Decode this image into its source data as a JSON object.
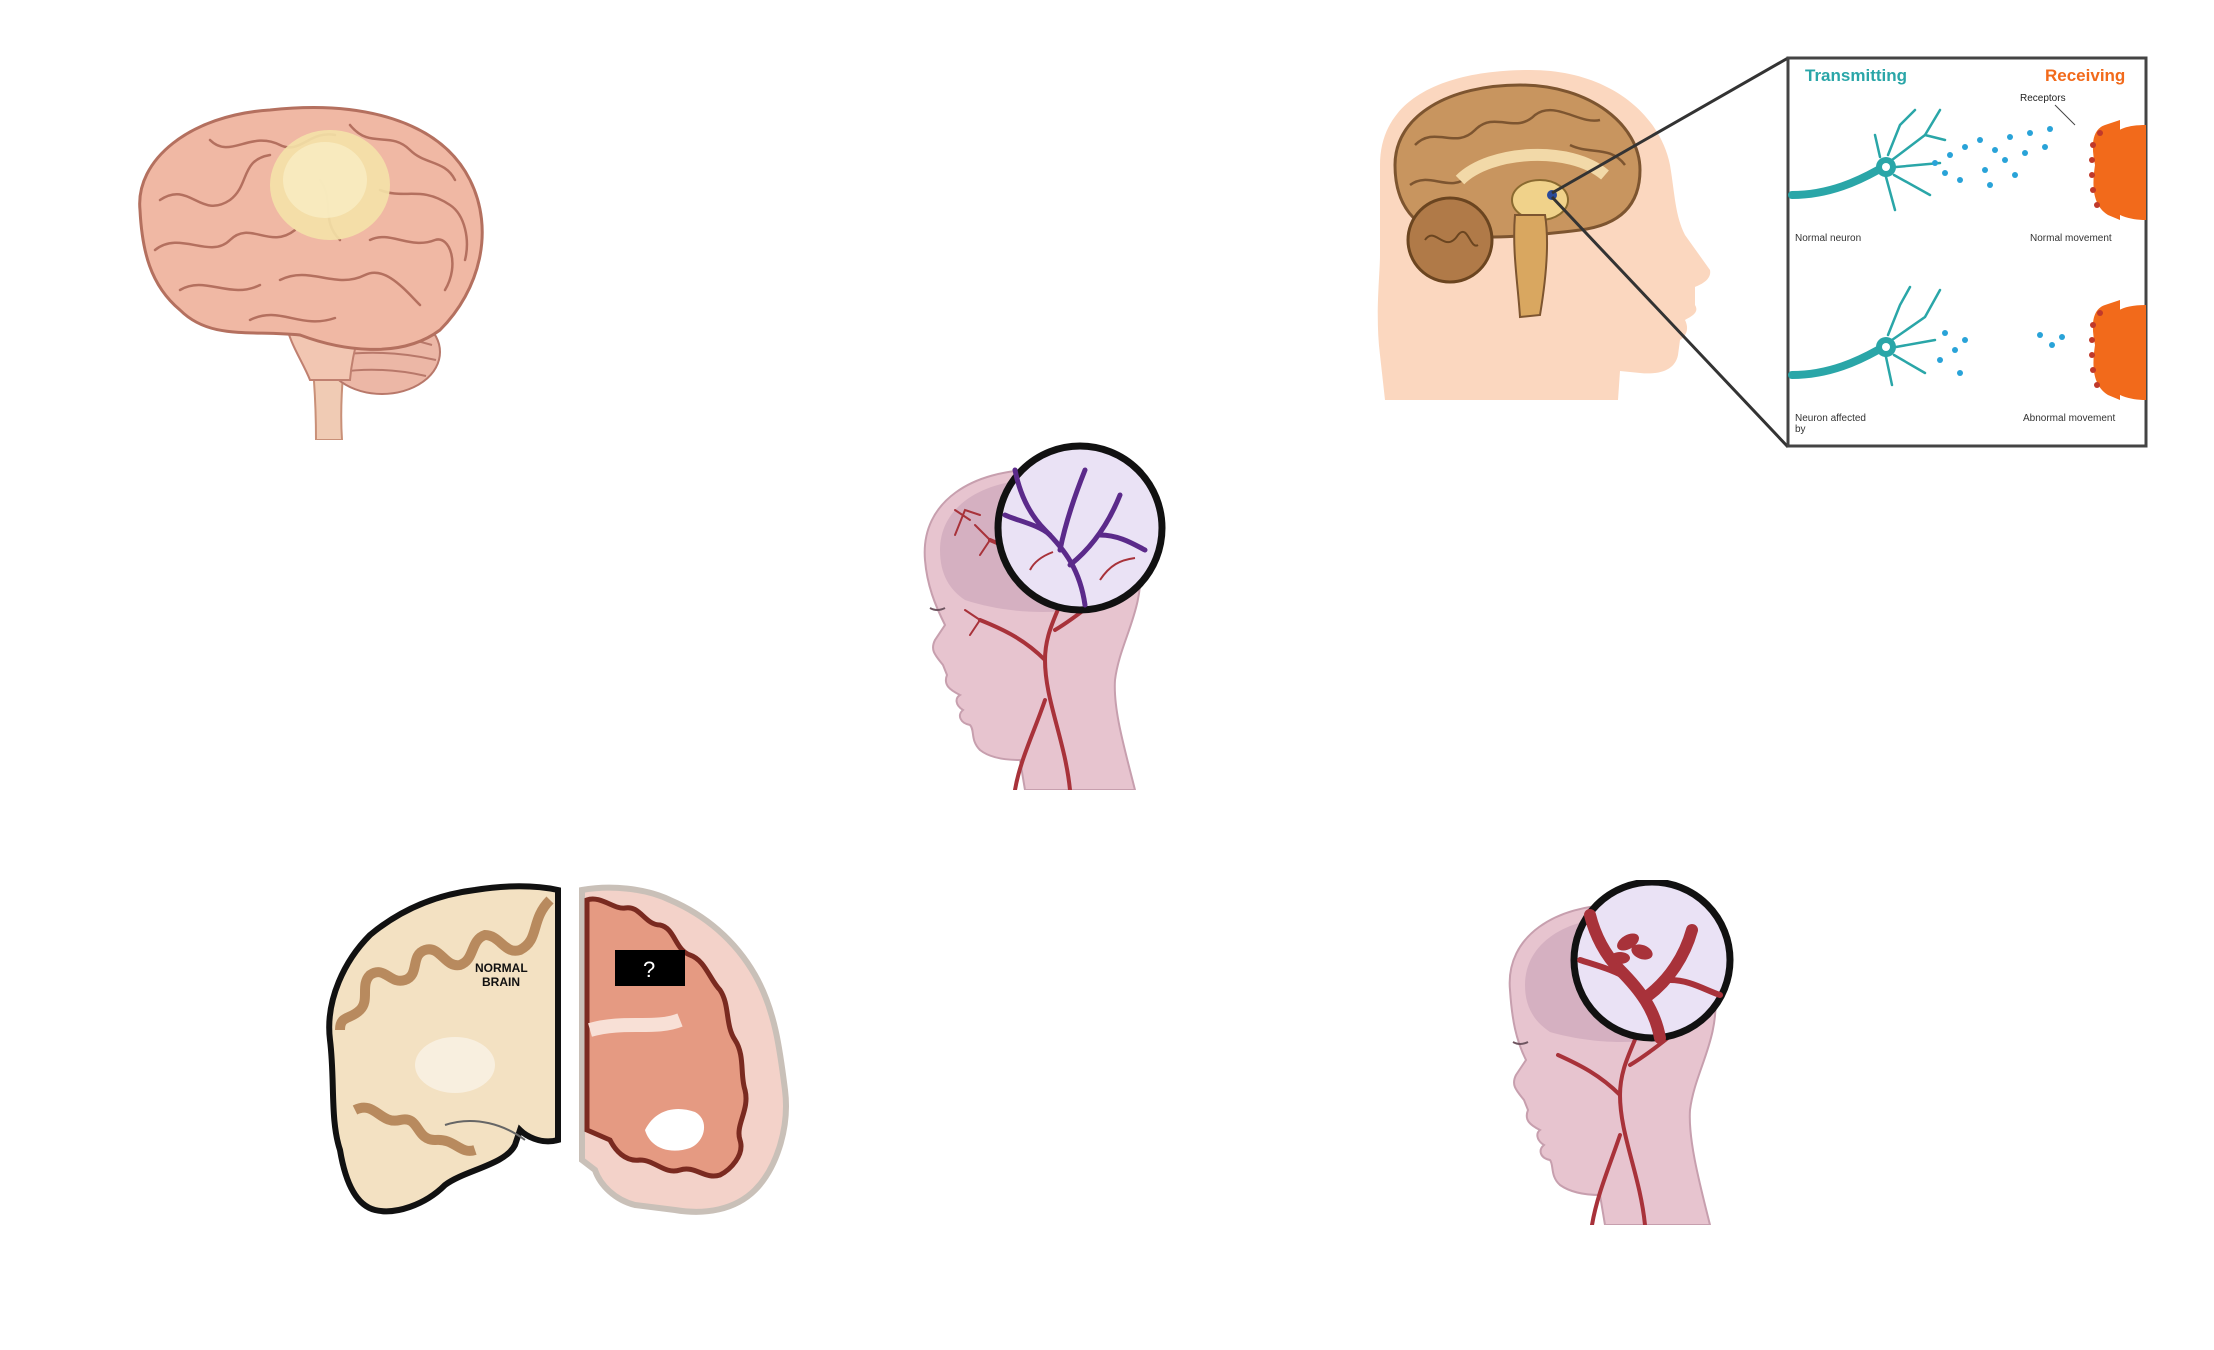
{
  "figures": {
    "tumor_brain": {
      "name": "brain with tumor"
    },
    "synapse": {
      "transmitting_label": "Transmitting",
      "receiving_label": "Receiving",
      "receptors_label": "Receptors",
      "normal_neuron_label": "Normal neuron",
      "normal_movement_label": "Normal movement",
      "affected_neuron_label": "Neuron affected by",
      "abnormal_movement_label": "Abnormal movement",
      "colors": {
        "transmit": "#2aa6a8",
        "receive": "#f26a1b",
        "dots": "#29a3d8"
      }
    },
    "vessels_head": {
      "name": "head with cerebral vessels magnified"
    },
    "coronal_section": {
      "normal_label_line1": "NORMAL",
      "normal_label_line2": "BRAIN",
      "unknown_label": "?"
    },
    "aneurysm_head": {
      "name": "head with aneurysm magnified"
    }
  }
}
